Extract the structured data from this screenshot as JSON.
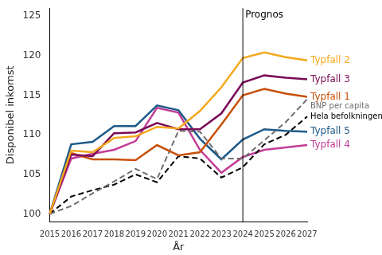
{
  "chart_data": {
    "type": "line",
    "x_label": "År",
    "y_label": "Disponibel inkomst",
    "categories": [
      "2015",
      "2016",
      "2017",
      "2018",
      "2019",
      "2020",
      "2021",
      "2022",
      "2023",
      "2024",
      "2025",
      "2026",
      "2027"
    ],
    "series": [
      {
        "name": "Typfall 2",
        "color": "#f4a81d",
        "line_style": "solid",
        "values": [
          100,
          108,
          107.8,
          109.6,
          109.8,
          111,
          110.8,
          113,
          116,
          119.7,
          120.4,
          119.8,
          119.4
        ]
      },
      {
        "name": "Typfall 3",
        "color": "#7a0a58",
        "line_style": "solid",
        "values": [
          100,
          107.5,
          107.3,
          110.2,
          110.3,
          111.5,
          110.7,
          110.7,
          112.7,
          116.6,
          117.5,
          117.2,
          117
        ]
      },
      {
        "name": "Typfall 1",
        "color": "#c8500a",
        "line_style": "solid",
        "values": [
          100,
          107.7,
          106.9,
          106.9,
          106.8,
          108.7,
          107.4,
          107.8,
          111.3,
          115,
          115.8,
          115.2,
          114.8
        ]
      },
      {
        "name": "BNP per capita",
        "color": "#6e6e6e",
        "line_style": "dashed",
        "values": [
          100,
          101,
          102.6,
          104.1,
          105.7,
          104.4,
          110.5,
          110.4,
          107,
          107,
          109.3,
          111.6,
          114.5
        ]
      },
      {
        "name": "Hela befolkningen",
        "color": "#000000",
        "line_style": "dashed",
        "values": [
          100,
          102.2,
          103,
          103.7,
          105,
          104,
          107.3,
          107,
          104.6,
          105.9,
          108.8,
          110,
          112.3
        ]
      },
      {
        "name": "Typfall 5",
        "color": "#1d5a8a",
        "line_style": "solid",
        "values": [
          100,
          108.8,
          109.1,
          111.1,
          111.1,
          113.7,
          113.1,
          109.5,
          106.9,
          109.4,
          110.7,
          110.5,
          110.4
        ]
      },
      {
        "name": "Typfall 4",
        "color": "#c23c97",
        "line_style": "solid",
        "values": [
          100,
          107,
          107.6,
          108.1,
          109.2,
          113.4,
          112.8,
          108.1,
          105.2,
          107.2,
          108.1,
          108.4,
          108.7
        ]
      }
    ],
    "annotations": [
      {
        "x": "2024",
        "text": "Prognos"
      }
    ],
    "ylim": [
      99,
      126
    ],
    "yticks": [
      100,
      105,
      110,
      115,
      120,
      125
    ],
    "grid": false
  }
}
